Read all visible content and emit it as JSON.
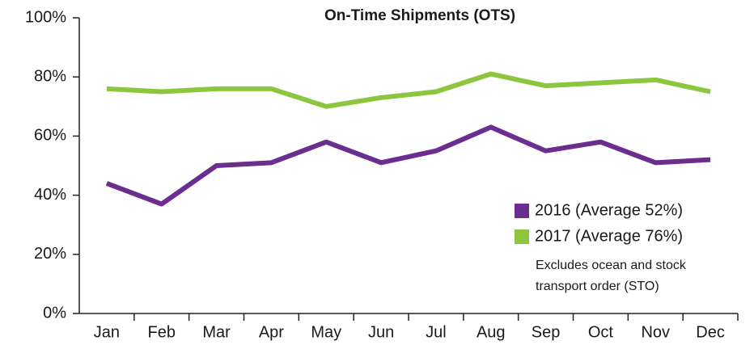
{
  "chart_data": {
    "type": "line",
    "title": "On-Time Shipments (OTS)",
    "categories": [
      "Jan",
      "Feb",
      "Mar",
      "Apr",
      "May",
      "Jun",
      "Jul",
      "Aug",
      "Sep",
      "Oct",
      "Nov",
      "Dec"
    ],
    "series": [
      {
        "name": "2016 (Average 52%)",
        "color": "#6b2d8f",
        "values": [
          44,
          37,
          50,
          51,
          58,
          51,
          55,
          63,
          55,
          58,
          51,
          52
        ]
      },
      {
        "name": "2017 (Average 76%)",
        "color": "#8cc63f",
        "values": [
          76,
          75,
          76,
          76,
          70,
          73,
          75,
          81,
          77,
          78,
          79,
          75
        ]
      }
    ],
    "ylim": [
      0,
      100
    ],
    "yticks": [
      {
        "value": 0,
        "label": "0%"
      },
      {
        "value": 20,
        "label": "20%"
      },
      {
        "value": 40,
        "label": "40%"
      },
      {
        "value": 60,
        "label": "60%"
      },
      {
        "value": 80,
        "label": "80%"
      },
      {
        "value": 100,
        "label": "100%"
      }
    ],
    "grid": false,
    "legend_position": "lower right",
    "annotations": [
      "Excludes ocean and stock",
      "transport order (STO)"
    ]
  }
}
